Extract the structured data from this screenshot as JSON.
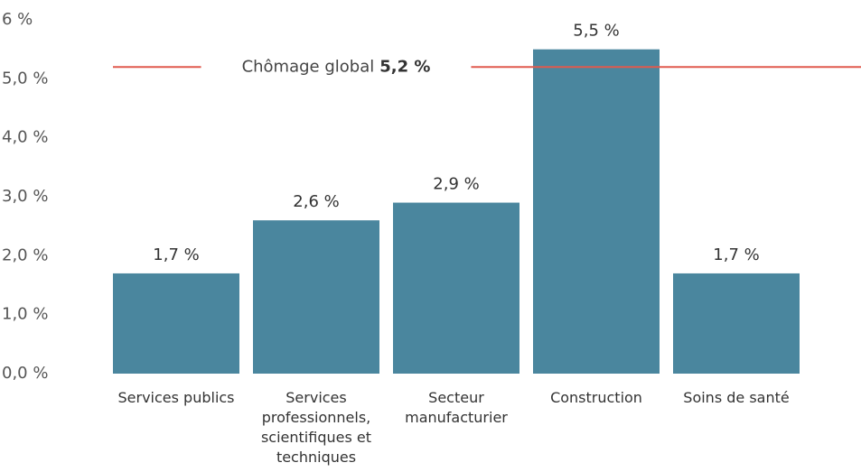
{
  "chart_data": {
    "type": "bar",
    "categories": [
      "Services publics",
      "Services professionnels, scientifiques et techniques",
      "Secteur manufacturier",
      "Construction",
      "Soins de santé"
    ],
    "values": [
      1.7,
      2.6,
      2.9,
      5.5,
      1.7
    ],
    "value_labels": [
      "1,7 %",
      "2,6 %",
      "2,9 %",
      "5,5 %",
      "1,7 %"
    ],
    "color": "#4a869e",
    "ylim": [
      0,
      6
    ],
    "yticks": [
      {
        "value": 0,
        "label": "0,0 %"
      },
      {
        "value": 1,
        "label": "1,0 %"
      },
      {
        "value": 2,
        "label": "2,0 %"
      },
      {
        "value": 3,
        "label": "3,0 %"
      },
      {
        "value": 4,
        "label": "4,0 %"
      },
      {
        "value": 5,
        "label": "5,0 %"
      },
      {
        "value": 6,
        "label": "6 %"
      }
    ],
    "grid": false,
    "reference_line": {
      "label": "Chômage global",
      "value": 5.2,
      "value_label": "5,2 %",
      "color": "#e05a4f"
    }
  }
}
